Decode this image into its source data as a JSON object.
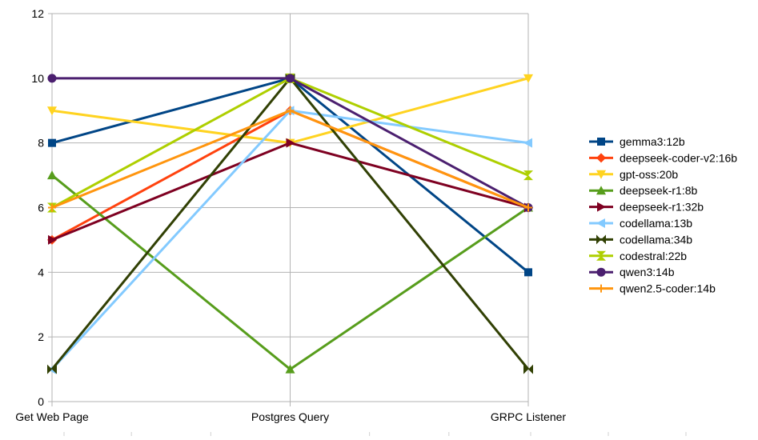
{
  "chart_data": {
    "type": "line",
    "title": "",
    "xlabel": "",
    "ylabel": "",
    "categories": [
      "Get Web Page",
      "Postgres Query",
      "GRPC Listener"
    ],
    "ylim": [
      0,
      12
    ],
    "yticks": [
      0,
      2,
      4,
      6,
      8,
      10,
      12
    ],
    "grid": "horizontal",
    "legend_position": "right",
    "series": [
      {
        "name": "gemma3:12b",
        "values": [
          8,
          10,
          4
        ],
        "color": "#004586",
        "marker": "square"
      },
      {
        "name": "deepseek-coder-v2:16b",
        "values": [
          5,
          9,
          6
        ],
        "color": "#ff420e",
        "marker": "diamond"
      },
      {
        "name": "gpt-oss:20b",
        "values": [
          9,
          8,
          10
        ],
        "color": "#ffd320",
        "marker": "triangle-down"
      },
      {
        "name": "deepseek-r1:8b",
        "values": [
          7,
          1,
          6
        ],
        "color": "#579d1c",
        "marker": "triangle-up"
      },
      {
        "name": "deepseek-r1:32b",
        "values": [
          5,
          8,
          6
        ],
        "color": "#7e0021",
        "marker": "triangle-right"
      },
      {
        "name": "codellama:13b",
        "values": [
          1,
          9,
          8
        ],
        "color": "#83caff",
        "marker": "triangle-left"
      },
      {
        "name": "codellama:34b",
        "values": [
          1,
          10,
          1
        ],
        "color": "#314004",
        "marker": "bowtie"
      },
      {
        "name": "codestral:22b",
        "values": [
          6,
          10,
          7
        ],
        "color": "#aecf00",
        "marker": "hourglass"
      },
      {
        "name": "qwen3:14b",
        "values": [
          10,
          10,
          6
        ],
        "color": "#4b1f6f",
        "marker": "circle"
      },
      {
        "name": "qwen2.5-coder:14b",
        "values": [
          6,
          9,
          6
        ],
        "color": "#ff950e",
        "marker": "star"
      }
    ]
  }
}
